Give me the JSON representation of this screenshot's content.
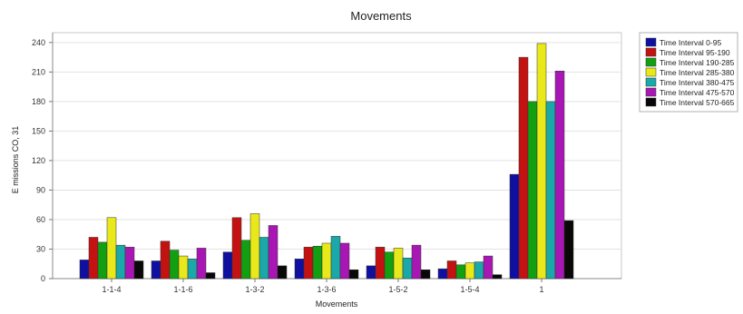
{
  "chart_data": {
    "type": "bar",
    "title": "Movements",
    "xlabel": "Movements",
    "ylabel": "E missions CO, 31",
    "ylim": [
      0,
      250
    ],
    "yticks": [
      0,
      30,
      60,
      90,
      120,
      150,
      180,
      210,
      240
    ],
    "grid": true,
    "legend_position": "right",
    "categories": [
      "1-1-4",
      "1-1-6",
      "1-3-2",
      "1-3-6",
      "1-5-2",
      "1-5-4",
      "1"
    ],
    "series": [
      {
        "name": "Time Interval 0-95",
        "color": "#1010a0",
        "values": [
          19,
          18,
          27,
          20,
          13,
          10,
          106
        ]
      },
      {
        "name": "Time Interval 95-190",
        "color": "#c41212",
        "values": [
          42,
          38,
          62,
          32,
          32,
          18,
          225
        ]
      },
      {
        "name": "Time Interval 190-285",
        "color": "#12a012",
        "values": [
          37,
          29,
          39,
          33,
          27,
          14,
          180
        ]
      },
      {
        "name": "Time Interval 285-380",
        "color": "#e8e81a",
        "values": [
          62,
          23,
          66,
          36,
          31,
          16,
          239
        ]
      },
      {
        "name": "Time Interval 380-475",
        "color": "#1aa8a8",
        "values": [
          34,
          20,
          42,
          43,
          21,
          17,
          180
        ]
      },
      {
        "name": "Time Interval 475-570",
        "color": "#a817b4",
        "values": [
          32,
          31,
          54,
          36,
          34,
          23,
          211
        ]
      },
      {
        "name": "Time Interval 570-665",
        "color": "#080808",
        "values": [
          18,
          6,
          13,
          9,
          9,
          4,
          59
        ]
      }
    ]
  }
}
